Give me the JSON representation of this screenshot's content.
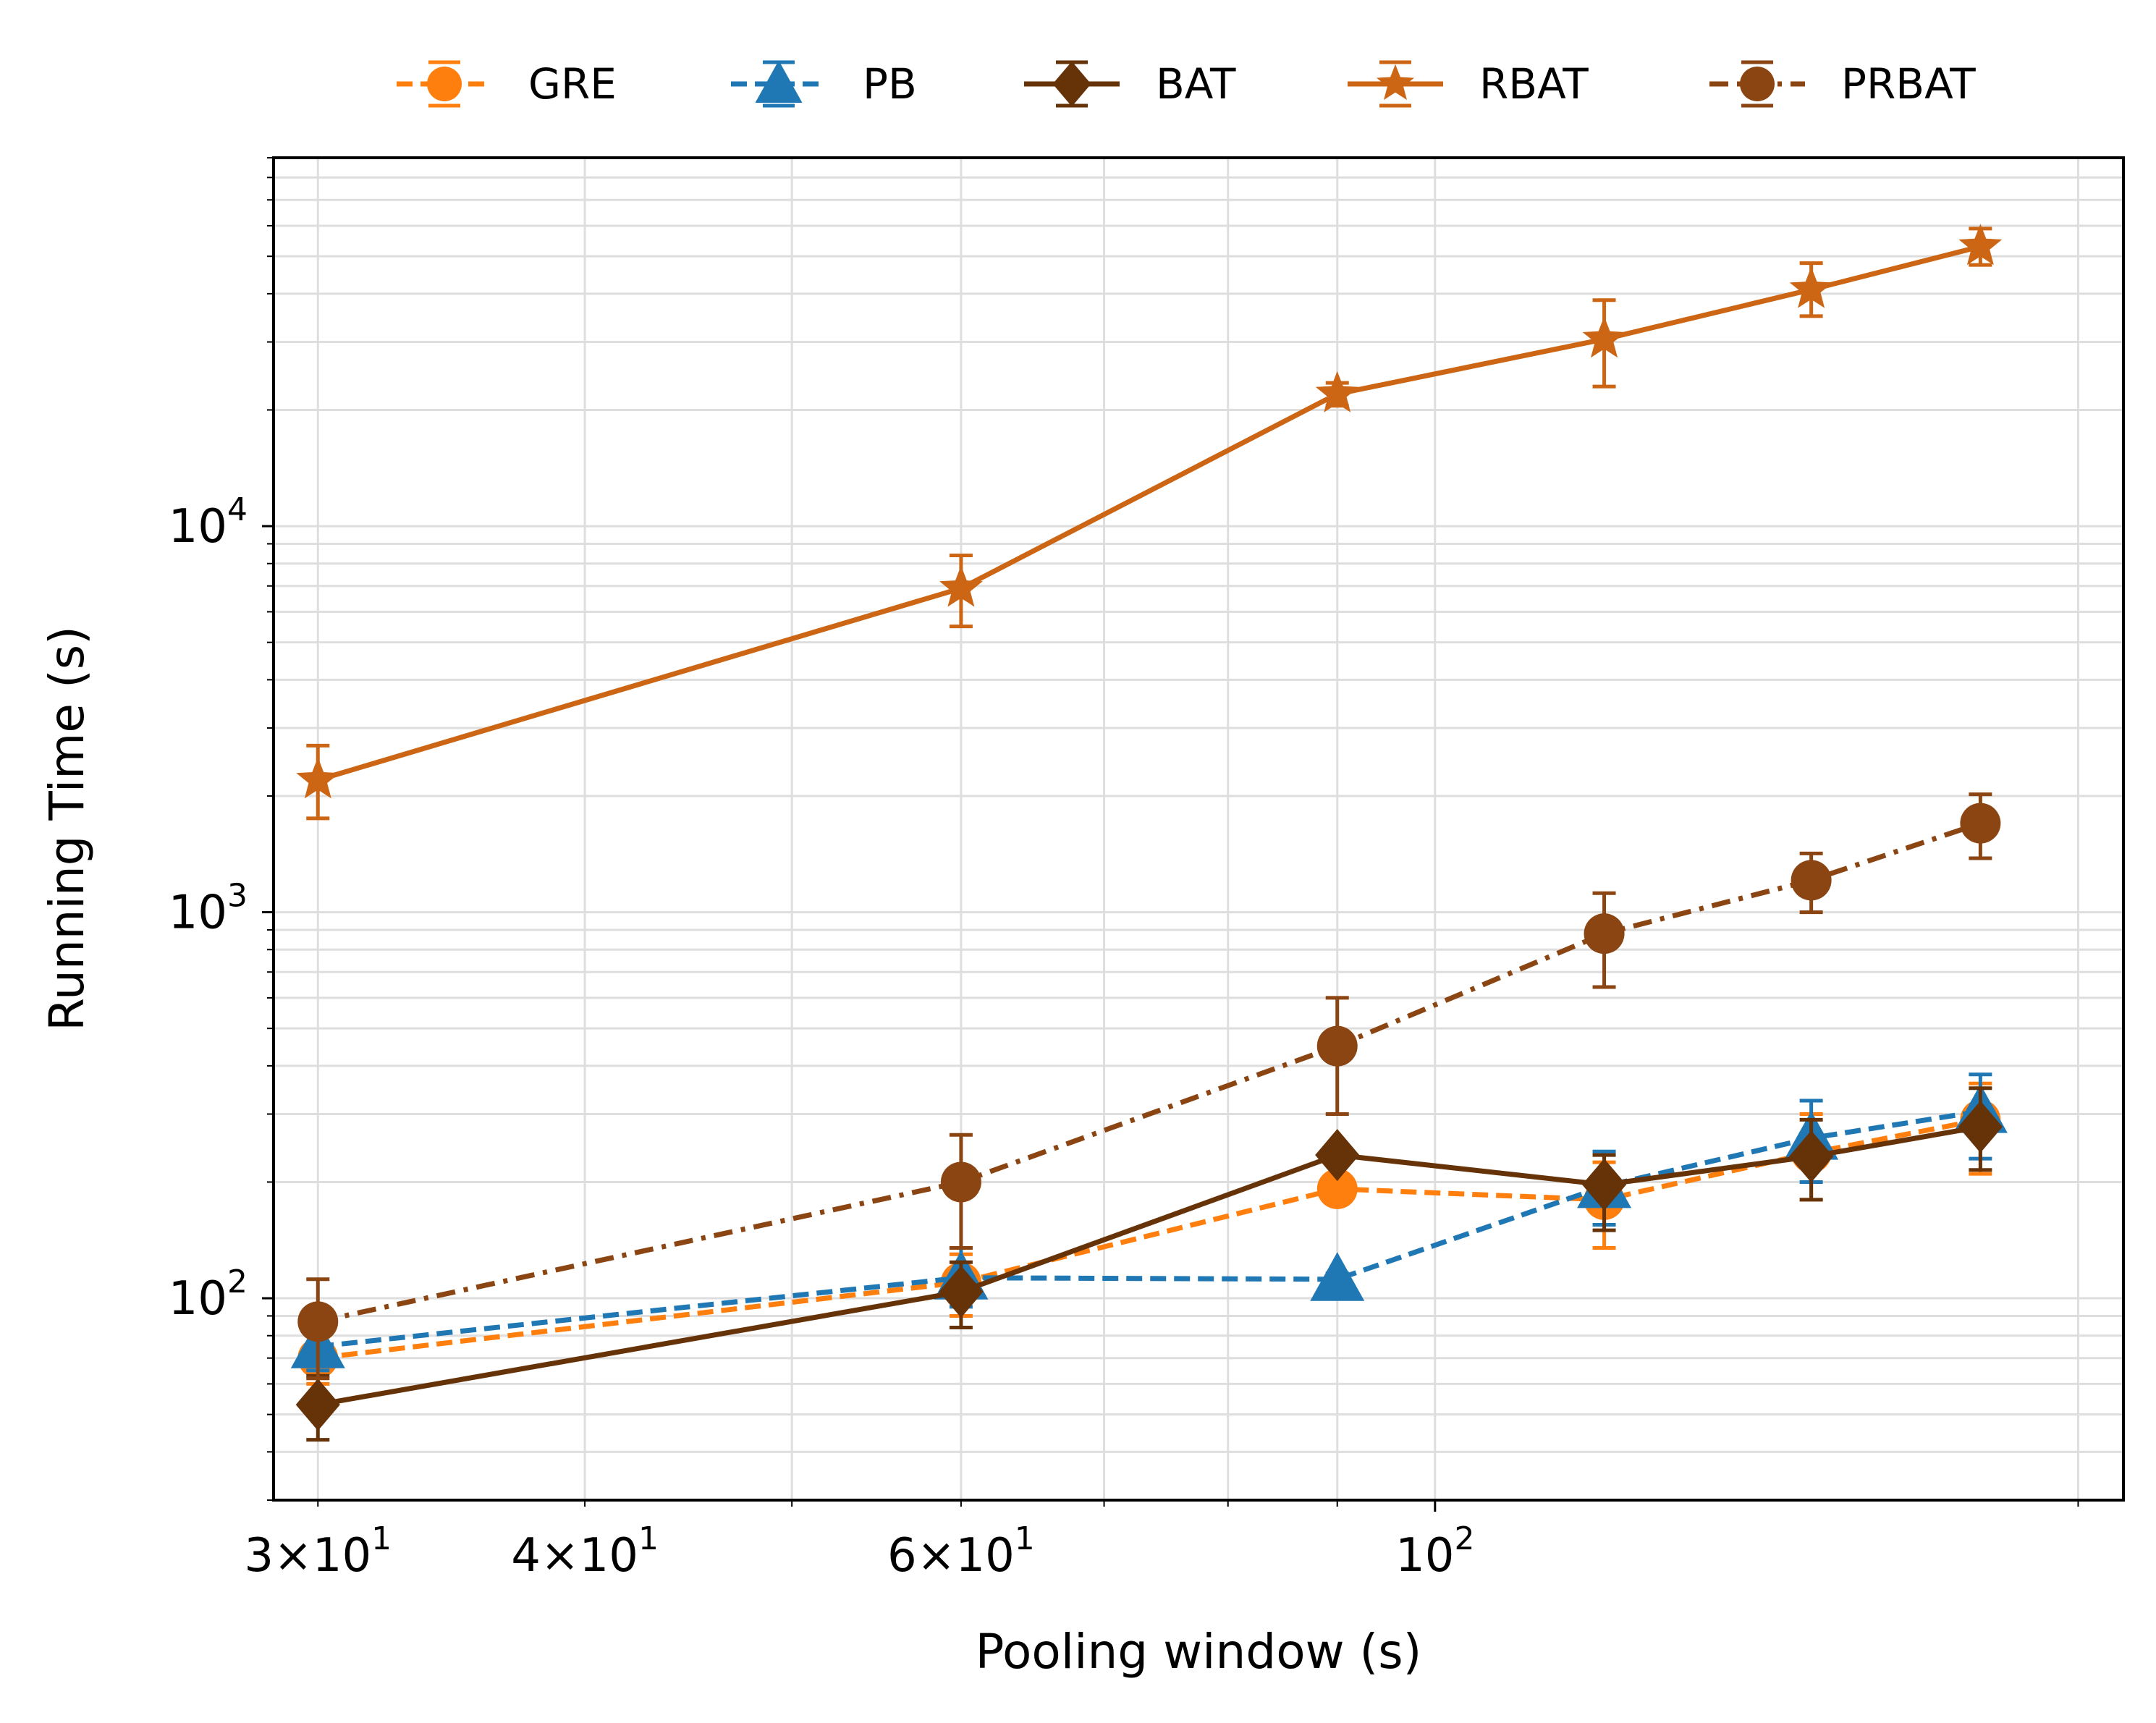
{
  "chart_data": {
    "type": "line",
    "title": "",
    "xlabel": "Pooling window (s)",
    "ylabel": "Running Time (s)",
    "xscale": "log",
    "yscale": "log",
    "xlim": [
      28.6,
      210
    ],
    "ylim": [
      30,
      90000
    ],
    "grid": true,
    "legend_position": "top",
    "x": [
      30,
      60,
      90,
      120,
      150,
      180
    ],
    "x_ticks": [
      {
        "value": 30,
        "mantissa": "3",
        "base": "10",
        "exp": "1"
      },
      {
        "value": 40,
        "mantissa": "4",
        "base": "10",
        "exp": "1"
      },
      {
        "value": 60,
        "mantissa": "6",
        "base": "10",
        "exp": "1"
      },
      {
        "value": 100,
        "mantissa": "",
        "base": "10",
        "exp": "2"
      }
    ],
    "y_ticks": [
      {
        "value": 100,
        "base": "10",
        "exp": "2"
      },
      {
        "value": 1000,
        "base": "10",
        "exp": "3"
      },
      {
        "value": 10000,
        "base": "10",
        "exp": "4"
      }
    ],
    "series": [
      {
        "name": "GRE",
        "color": "#ff7f0e",
        "marker": "circle",
        "dash": "dashed",
        "values": [
          70,
          110,
          192,
          180,
          238,
          290
        ],
        "err_low": [
          60,
          90,
          185,
          135,
          180,
          210
        ],
        "err_high": [
          80,
          130,
          200,
          225,
          300,
          360
        ]
      },
      {
        "name": "PB",
        "color": "#1f77b4",
        "marker": "triangle",
        "dash": "dashed",
        "values": [
          75,
          113,
          112,
          195,
          260,
          305
        ],
        "err_low": [
          65,
          95,
          108,
          155,
          200,
          230
        ],
        "err_high": [
          85,
          135,
          116,
          240,
          325,
          380
        ]
      },
      {
        "name": "BAT",
        "color": "#663309",
        "marker": "diamond",
        "dash": "solid",
        "values": [
          53,
          104,
          235,
          197,
          233,
          278
        ],
        "err_low": [
          43,
          84,
          225,
          150,
          180,
          215
        ],
        "err_high": [
          63,
          124,
          245,
          235,
          290,
          350
        ]
      },
      {
        "name": "RBAT",
        "color": "#cc6614",
        "marker": "star",
        "dash": "solid",
        "values": [
          2200,
          6900,
          22000,
          30500,
          41000,
          53000
        ],
        "err_low": [
          1750,
          5500,
          20500,
          23000,
          35000,
          47500
        ],
        "err_high": [
          2700,
          8400,
          23500,
          38500,
          48000,
          59000
        ]
      },
      {
        "name": "PRBAT",
        "color": "#8b4513",
        "marker": "circle",
        "dash": "dashdot",
        "values": [
          87,
          200,
          450,
          880,
          1210,
          1700
        ],
        "err_low": [
          62,
          135,
          300,
          640,
          1000,
          1380
        ],
        "err_high": [
          112,
          265,
          600,
          1120,
          1420,
          2020
        ]
      }
    ]
  }
}
